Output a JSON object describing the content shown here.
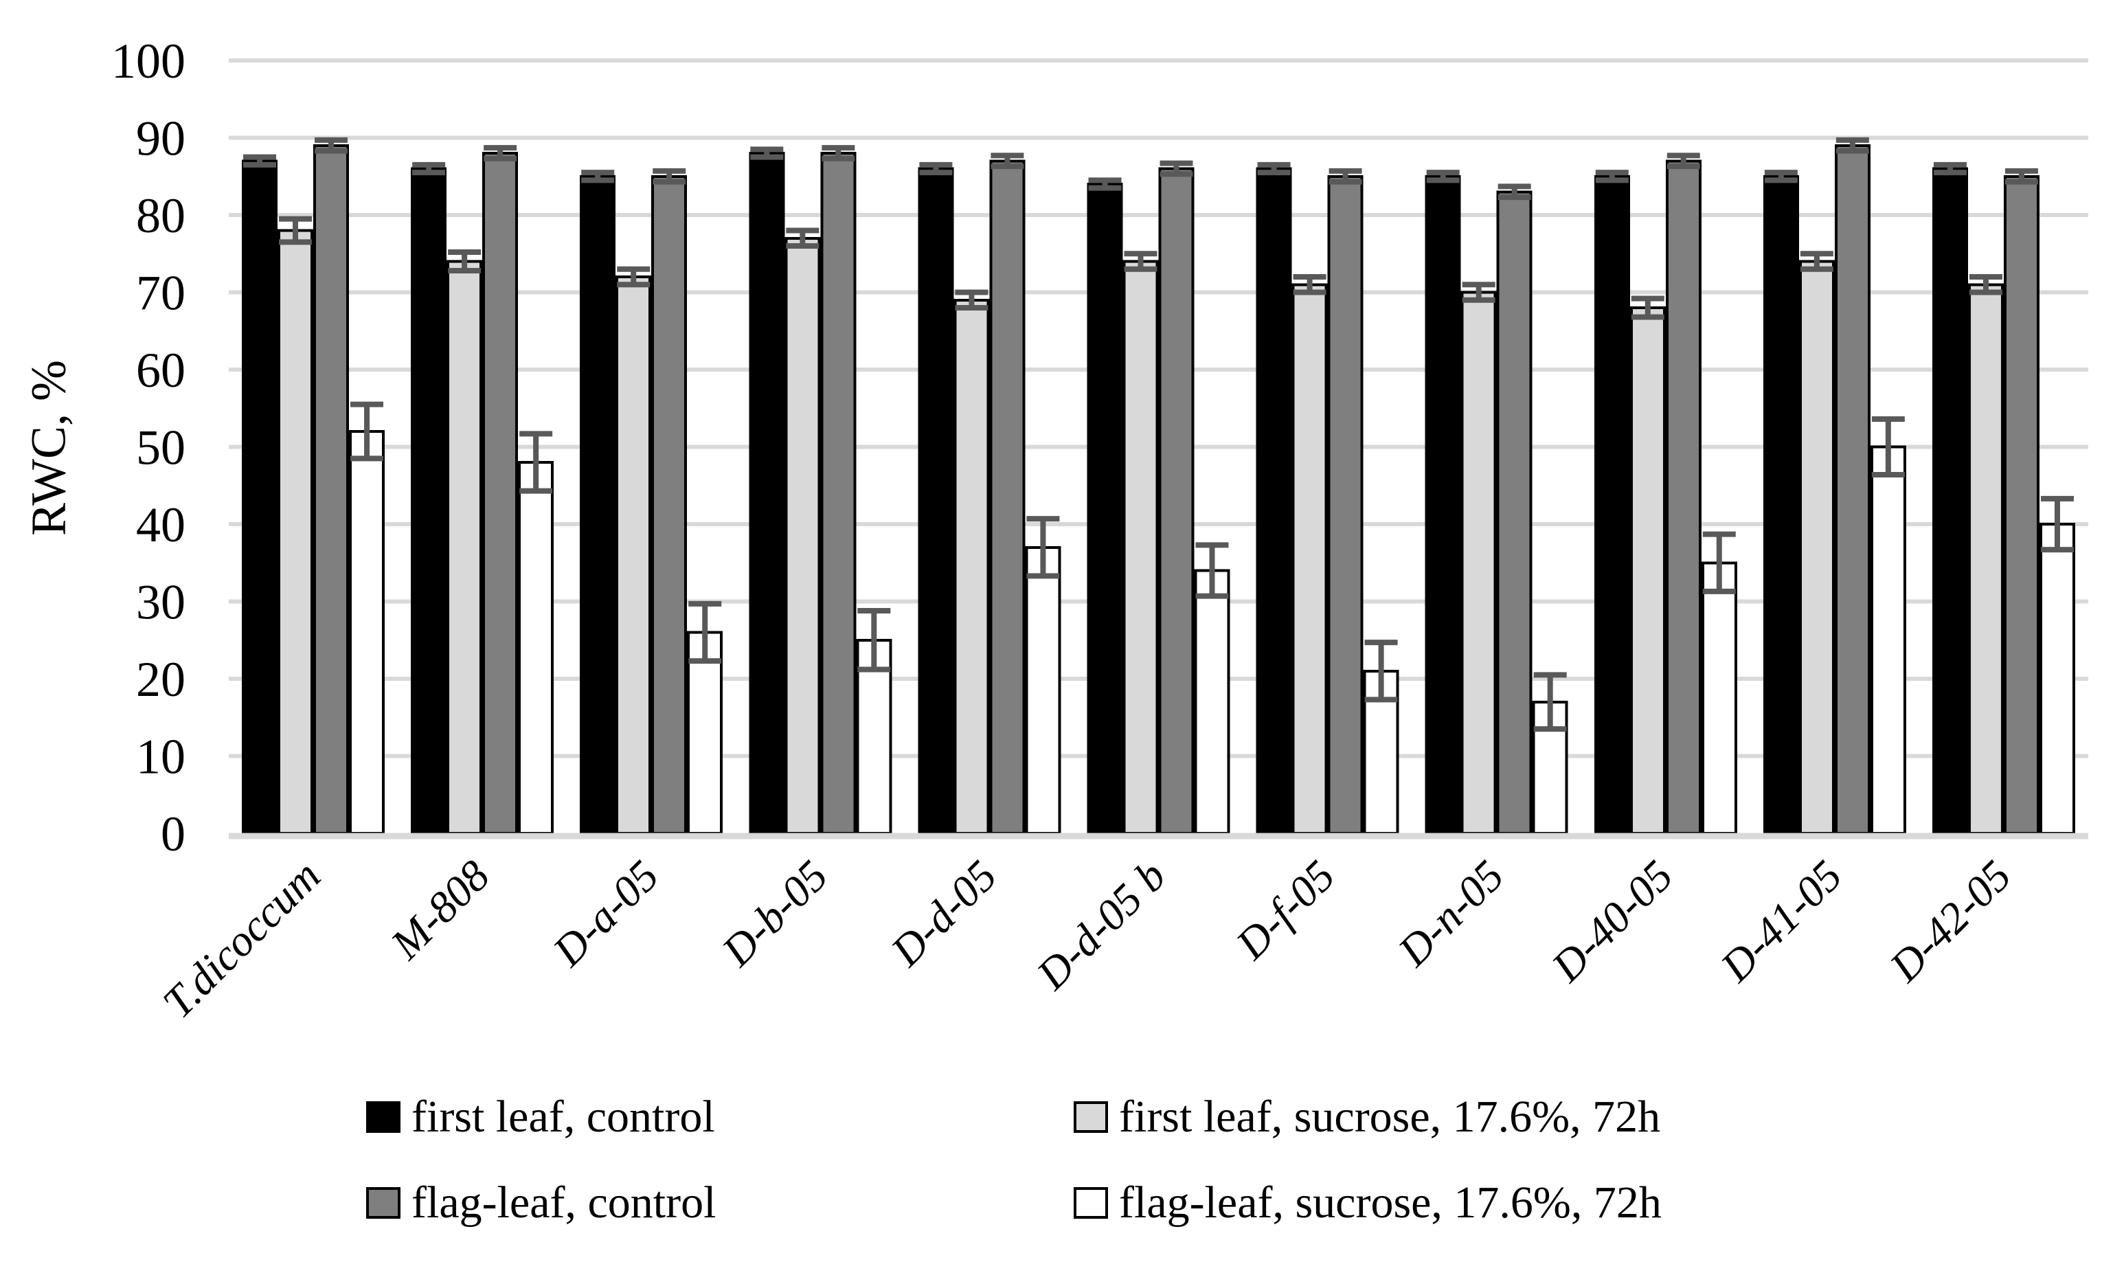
{
  "figure": {
    "background": "#ffffff"
  },
  "chart_data": {
    "type": "bar",
    "title": "",
    "xlabel": "",
    "ylabel": "RWC, %",
    "ylim": [
      0,
      100
    ],
    "yticks": [
      0,
      10,
      20,
      30,
      40,
      50,
      60,
      70,
      80,
      90,
      100
    ],
    "grid": true,
    "legend_position": "bottom",
    "categories": [
      "T.dicoccum",
      "M-808",
      "D-a-05",
      "D-b-05",
      "D-d-05",
      "D-d-05 b",
      "D-f-05",
      "D-n-05",
      "D-40-05",
      "D-41-05",
      "D-42-05"
    ],
    "series": [
      {
        "name": "first leaf, control",
        "fill": "#000000",
        "values": [
          87,
          86,
          85,
          88,
          86,
          84,
          86,
          85,
          85,
          85,
          86
        ],
        "errors": [
          0.5,
          0.5,
          0.5,
          0.5,
          0.5,
          0.5,
          0.5,
          0.5,
          0.5,
          0.5,
          0.5
        ]
      },
      {
        "name": "first leaf, sucrose, 17.6%, 72h",
        "fill": "#d9d9d9",
        "values": [
          78,
          74,
          72,
          77,
          69,
          74,
          71,
          70,
          68,
          74,
          71
        ],
        "errors": [
          1.5,
          1.2,
          1.0,
          1.0,
          1.0,
          1.0,
          1.0,
          1.0,
          1.2,
          1.0,
          1.0
        ]
      },
      {
        "name": "flag-leaf, control",
        "fill": "#7f7f7f",
        "values": [
          89,
          88,
          85,
          88,
          87,
          86,
          85,
          83,
          87,
          89,
          85
        ],
        "errors": [
          0.7,
          0.7,
          0.7,
          0.7,
          0.7,
          0.7,
          0.7,
          0.7,
          0.7,
          0.7,
          0.7
        ]
      },
      {
        "name": "flag-leaf, sucrose, 17.6%, 72h",
        "fill": "#ffffff",
        "values": [
          52,
          48,
          26,
          25,
          37,
          34,
          21,
          17,
          35,
          50,
          40
        ],
        "errors": [
          3.5,
          3.7,
          3.7,
          3.8,
          3.7,
          3.3,
          3.7,
          3.5,
          3.7,
          3.6,
          3.3
        ]
      }
    ],
    "colors": {
      "bar_border": "#000000",
      "error_bar": "#595959",
      "gridline": "#d9d9d9",
      "axis_line": "#d9d9d9",
      "text": "#000000"
    }
  }
}
